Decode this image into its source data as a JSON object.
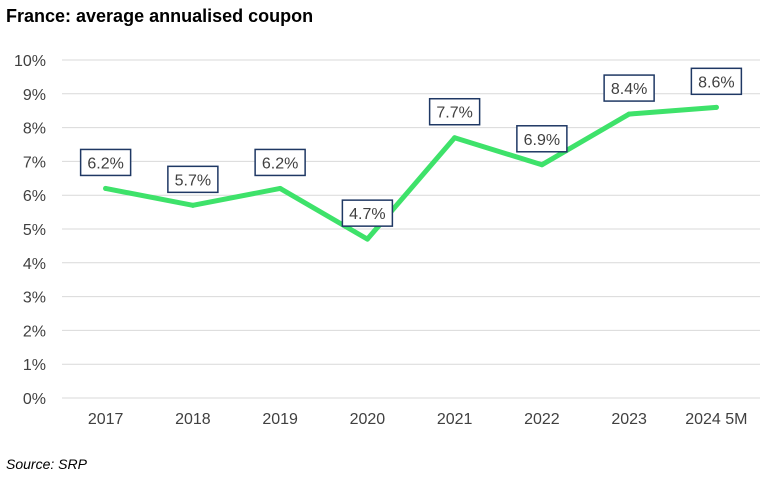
{
  "title": "France: average annualised coupon",
  "source": "Source: SRP",
  "colors": {
    "line": "#3ee26a",
    "grid": "#d9d9d9",
    "label_border": "#1f3864"
  },
  "chart_data": {
    "type": "line",
    "title": "France: average annualised coupon",
    "xlabel": "",
    "ylabel": "",
    "categories": [
      "2017",
      "2018",
      "2019",
      "2020",
      "2021",
      "2022",
      "2023",
      "2024 5M"
    ],
    "series": [
      {
        "values": [
          6.2,
          5.7,
          6.2,
          4.7,
          7.7,
          6.9,
          8.4,
          8.6
        ]
      }
    ],
    "data_labels": [
      "6.2%",
      "5.7%",
      "6.2%",
      "4.7%",
      "7.7%",
      "6.9%",
      "8.4%",
      "8.6%"
    ],
    "yticks": [
      "0%",
      "1%",
      "2%",
      "3%",
      "4%",
      "5%",
      "6%",
      "7%",
      "8%",
      "9%",
      "10%"
    ],
    "ylim": [
      0,
      10
    ],
    "grid": true,
    "legend": "none"
  }
}
